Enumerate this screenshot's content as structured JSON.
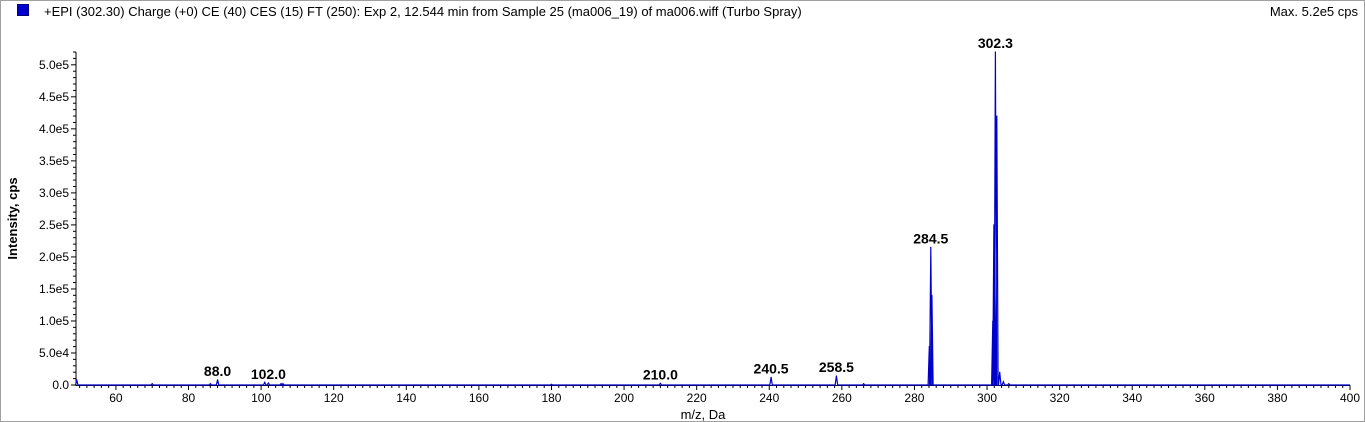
{
  "header": {
    "title": "+EPI (302.30) Charge (+0) CE (40) CES (15) FT (250): Exp 2, 12.544 min from Sample 25 (ma006_19) of ma006.wiff (Turbo Spray)",
    "max_label": "Max. 5.2e5 cps",
    "series_color": "#0000cc"
  },
  "chart_data": {
    "type": "line",
    "title": "+EPI (302.30) Charge (+0) CE (40) CES (15) FT (250): Exp 2, 12.544 min from Sample 25 (ma006_19) of ma006.wiff (Turbo Spray)",
    "xlabel": "m/z, Da",
    "ylabel": "Intensity, cps",
    "xlim": [
      49,
      400
    ],
    "ylim": [
      0,
      520000
    ],
    "grid": false,
    "x_ticks": [
      60,
      80,
      100,
      120,
      140,
      160,
      180,
      200,
      220,
      240,
      260,
      280,
      300,
      320,
      340,
      360,
      380,
      400
    ],
    "x_tick_labels": [
      "60",
      "80",
      "100",
      "120",
      "140",
      "160",
      "180",
      "200",
      "220",
      "240",
      "260",
      "280",
      "300",
      "320",
      "340",
      "360",
      "380",
      "400"
    ],
    "y_ticks": [
      0,
      50000,
      100000,
      150000,
      200000,
      250000,
      300000,
      350000,
      400000,
      450000,
      500000
    ],
    "y_tick_labels": [
      "0.0",
      "5.0e4",
      "1.0e5",
      "1.5e5",
      "2.0e5",
      "2.5e5",
      "3.0e5",
      "3.5e5",
      "4.0e5",
      "4.5e5",
      "5.0e5"
    ],
    "series": [
      {
        "x": [
          49.2,
          70.0,
          86.0,
          88.0,
          101.0,
          102.0,
          105.5,
          106.0,
          180.0,
          210.0,
          240.5,
          258.5,
          266.0,
          284.1,
          284.5,
          284.8,
          301.6,
          301.9,
          302.3,
          302.7,
          303.5,
          304.5,
          306.0
        ],
        "y": [
          8000,
          2000,
          2000,
          8000,
          4000,
          3000,
          2000,
          2000,
          1000,
          2500,
          12000,
          14000,
          2000,
          60000,
          215000,
          140000,
          100000,
          250000,
          520000,
          420000,
          20000,
          5000,
          2000
        ]
      }
    ],
    "annotations": [
      {
        "text": "88.0",
        "x": 88.0,
        "y": 8000
      },
      {
        "text": "102.0",
        "x": 102.0,
        "y": 3000
      },
      {
        "text": "210.0",
        "x": 210.0,
        "y": 2500
      },
      {
        "text": "240.5",
        "x": 240.5,
        "y": 12000
      },
      {
        "text": "258.5",
        "x": 258.5,
        "y": 14000
      },
      {
        "text": "284.5",
        "x": 284.5,
        "y": 215000
      },
      {
        "text": "302.3",
        "x": 302.3,
        "y": 520000
      }
    ]
  }
}
